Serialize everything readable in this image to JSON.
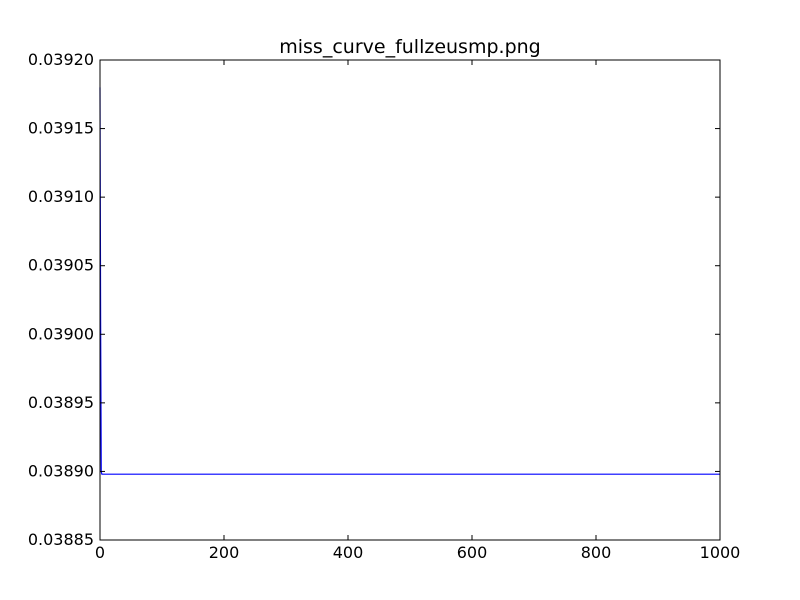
{
  "chart_data": {
    "type": "line",
    "title": "miss_curve_fullzeusmp.png",
    "xlabel": "",
    "ylabel": "",
    "xlim": [
      0,
      1000
    ],
    "ylim": [
      0.03885,
      0.0392
    ],
    "xticks": [
      "0",
      "200",
      "400",
      "600",
      "800",
      "1000"
    ],
    "yticks": [
      "0.03885",
      "0.03890",
      "0.03895",
      "0.03900",
      "0.03905",
      "0.03910",
      "0.03915",
      "0.03920"
    ],
    "grid": false,
    "series": [
      {
        "color": "#0000ff",
        "x": [
          0,
          1,
          2,
          3,
          1000
        ],
        "y": [
          0.03918,
          0.03901,
          0.0389,
          0.038898,
          0.038898
        ]
      }
    ]
  }
}
